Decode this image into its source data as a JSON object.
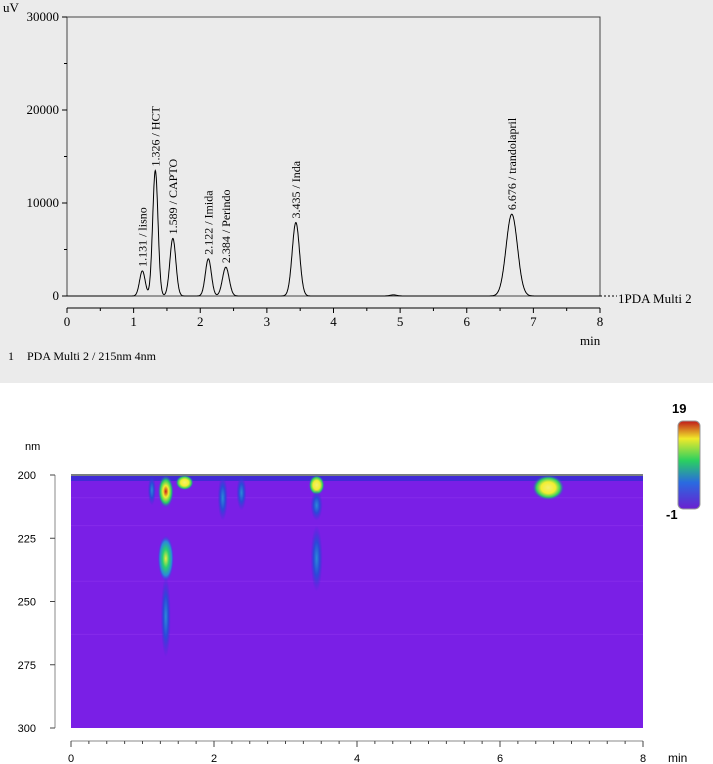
{
  "chart_data": [
    {
      "type": "line",
      "title": "",
      "y_unit": "uV",
      "xlabel": "min",
      "xlim": [
        0,
        8
      ],
      "ylim": [
        0,
        30000
      ],
      "x_ticks": [
        "0",
        "1",
        "2",
        "3",
        "4",
        "5",
        "6",
        "7",
        "8"
      ],
      "y_ticks": [
        "0",
        "10000",
        "20000",
        "30000"
      ],
      "series_label": "1PDA Multi 2",
      "footnote_number": "1",
      "footnote_text": "PDA Multi 2 / 215nm 4nm",
      "peaks": [
        {
          "rt": 1.131,
          "height": 2700,
          "width": 0.042,
          "label": "1.131 / lisno"
        },
        {
          "rt": 1.326,
          "height": 13500,
          "width": 0.04,
          "label": "1.326 / HCT"
        },
        {
          "rt": 1.589,
          "height": 6200,
          "width": 0.045,
          "label": "1.589 / CAPTO"
        },
        {
          "rt": 2.122,
          "height": 4000,
          "width": 0.045,
          "label": "2.122 / Imida"
        },
        {
          "rt": 2.384,
          "height": 3100,
          "width": 0.05,
          "label": "2.384 / Perindo"
        },
        {
          "rt": 3.435,
          "height": 7900,
          "width": 0.055,
          "label": "3.435 / Inda"
        },
        {
          "rt": 6.676,
          "height": 8800,
          "width": 0.085,
          "label": "6.676 / trandolapril"
        }
      ]
    },
    {
      "type": "heatmap",
      "ylabel": "nm",
      "xlabel": "min",
      "xlim": [
        0,
        8
      ],
      "ylim": [
        200,
        300
      ],
      "x_ticks": [
        "0",
        "2",
        "4",
        "6",
        "8"
      ],
      "y_ticks": [
        "200",
        "225",
        "250",
        "275",
        "300"
      ],
      "colorbar_max": "19",
      "colorbar_min": "-1",
      "colors": {
        "background": "#7a1fe6",
        "low": "#2a2fd0",
        "mid": "#22d07a",
        "high": "#f2ee30",
        "max": "#cc1a1a"
      }
    }
  ]
}
